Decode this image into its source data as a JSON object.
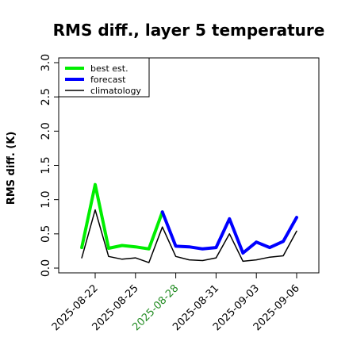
{
  "chart_data": {
    "type": "line",
    "title": "RMS diff., layer 5 temperature",
    "ylabel": "RMS diff. (K)",
    "xlabel": "",
    "ylim": [
      0.0,
      3.0
    ],
    "yticks": [
      "0.0",
      "0.5",
      "1.0",
      "1.5",
      "2.0",
      "2.5",
      "3.0"
    ],
    "x_tick_labels": [
      {
        "label": "2025-08-22",
        "color": "#000000"
      },
      {
        "label": "2025-08-25",
        "color": "#000000"
      },
      {
        "label": "2025-08-28",
        "color": "#228B22"
      },
      {
        "label": "2025-08-31",
        "color": "#000000"
      },
      {
        "label": "2025-09-03",
        "color": "#000000"
      },
      {
        "label": "2025-09-06",
        "color": "#000000"
      }
    ],
    "legend_position": "top-left",
    "grid": false,
    "series": [
      {
        "name": "best est.",
        "color": "#00ee00",
        "width": 4,
        "points": [
          {
            "x": "2025-08-21",
            "y": 0.3
          },
          {
            "x": "2025-08-22",
            "y": 1.22
          },
          {
            "x": "2025-08-23",
            "y": 0.29
          },
          {
            "x": "2025-08-24",
            "y": 0.33
          },
          {
            "x": "2025-08-25",
            "y": 0.31
          },
          {
            "x": "2025-08-26",
            "y": 0.28
          },
          {
            "x": "2025-08-27",
            "y": 0.82
          }
        ]
      },
      {
        "name": "forecast",
        "color": "#0000ff",
        "width": 4,
        "points": [
          {
            "x": "2025-08-27",
            "y": 0.82
          },
          {
            "x": "2025-08-28",
            "y": 0.32
          },
          {
            "x": "2025-08-29",
            "y": 0.31
          },
          {
            "x": "2025-08-30",
            "y": 0.28
          },
          {
            "x": "2025-08-31",
            "y": 0.3
          },
          {
            "x": "2025-09-01",
            "y": 0.72
          },
          {
            "x": "2025-09-02",
            "y": 0.22
          },
          {
            "x": "2025-09-03",
            "y": 0.38
          },
          {
            "x": "2025-09-04",
            "y": 0.3
          },
          {
            "x": "2025-09-05",
            "y": 0.39
          },
          {
            "x": "2025-09-06",
            "y": 0.74
          }
        ]
      },
      {
        "name": "climatology",
        "color": "#000000",
        "width": 1.5,
        "points": [
          {
            "x": "2025-08-21",
            "y": 0.15
          },
          {
            "x": "2025-08-22",
            "y": 0.85
          },
          {
            "x": "2025-08-23",
            "y": 0.17
          },
          {
            "x": "2025-08-24",
            "y": 0.13
          },
          {
            "x": "2025-08-25",
            "y": 0.15
          },
          {
            "x": "2025-08-26",
            "y": 0.08
          },
          {
            "x": "2025-08-27",
            "y": 0.6
          },
          {
            "x": "2025-08-28",
            "y": 0.17
          },
          {
            "x": "2025-08-29",
            "y": 0.12
          },
          {
            "x": "2025-08-30",
            "y": 0.11
          },
          {
            "x": "2025-08-31",
            "y": 0.15
          },
          {
            "x": "2025-09-01",
            "y": 0.5
          },
          {
            "x": "2025-09-02",
            "y": 0.1
          },
          {
            "x": "2025-09-03",
            "y": 0.12
          },
          {
            "x": "2025-09-04",
            "y": 0.16
          },
          {
            "x": "2025-09-05",
            "y": 0.18
          },
          {
            "x": "2025-09-06",
            "y": 0.54
          }
        ]
      }
    ]
  }
}
